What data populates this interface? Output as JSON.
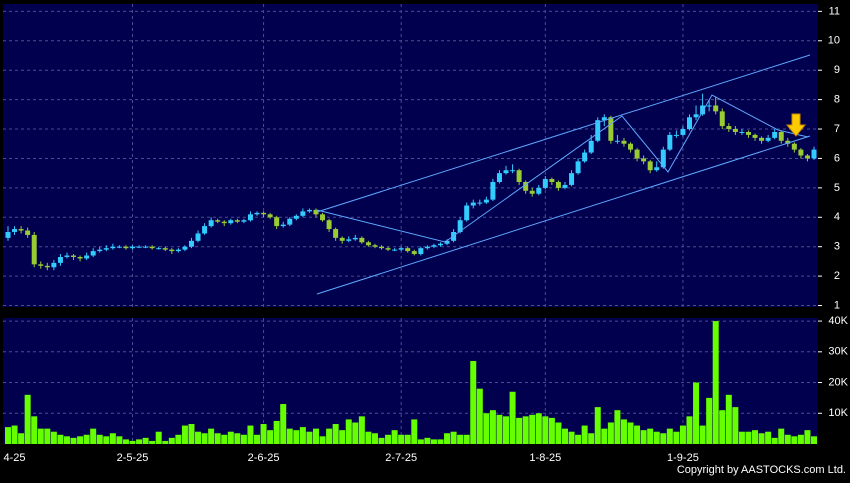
{
  "chart_data": {
    "type": "candlestick",
    "categories": [
      null,
      "4-25",
      null,
      null,
      null,
      null,
      null,
      null,
      null,
      null,
      null,
      null,
      null,
      null,
      null,
      null,
      null,
      null,
      null,
      "2-5-25",
      null,
      null,
      null,
      null,
      null,
      null,
      null,
      null,
      null,
      null,
      null,
      null,
      null,
      null,
      null,
      null,
      null,
      null,
      null,
      "2-6-25",
      null,
      null,
      null,
      null,
      null,
      null,
      null,
      null,
      null,
      null,
      null,
      null,
      null,
      null,
      null,
      null,
      null,
      null,
      null,
      null,
      "2-7-25",
      null,
      null,
      null,
      null,
      null,
      null,
      null,
      null,
      null,
      null,
      null,
      null,
      null,
      null,
      null,
      null,
      null,
      null,
      null,
      null,
      null,
      "1-8-25",
      null,
      null,
      null,
      null,
      null,
      null,
      null,
      null,
      null,
      null,
      null,
      null,
      null,
      null,
      null,
      null,
      null,
      null,
      null,
      null,
      "1-9-25",
      null,
      null,
      null,
      null,
      null,
      null,
      null,
      null,
      null,
      null,
      null,
      null,
      null,
      null,
      null,
      null,
      null,
      null,
      null,
      null
    ],
    "ohlc": [
      [
        3.3,
        3.7,
        3.2,
        3.5
      ],
      [
        3.5,
        3.7,
        3.4,
        3.6
      ],
      [
        3.6,
        3.7,
        3.45,
        3.55
      ],
      [
        3.55,
        3.65,
        3.3,
        3.4
      ],
      [
        3.4,
        3.5,
        2.3,
        2.4
      ],
      [
        2.4,
        2.5,
        2.25,
        2.35
      ],
      [
        2.35,
        2.45,
        2.2,
        2.3
      ],
      [
        2.3,
        2.55,
        2.2,
        2.45
      ],
      [
        2.45,
        2.75,
        2.35,
        2.65
      ],
      [
        2.65,
        2.8,
        2.6,
        2.7
      ],
      [
        2.7,
        2.75,
        2.55,
        2.65
      ],
      [
        2.65,
        2.7,
        2.5,
        2.6
      ],
      [
        2.6,
        2.8,
        2.55,
        2.7
      ],
      [
        2.7,
        2.95,
        2.65,
        2.85
      ],
      [
        2.85,
        3.0,
        2.8,
        2.9
      ],
      [
        2.9,
        3.05,
        2.85,
        2.95
      ],
      [
        2.95,
        3.1,
        2.9,
        3.0
      ],
      [
        3.0,
        3.05,
        2.95,
        3.0
      ],
      [
        3.0,
        3.05,
        2.9,
        2.95
      ],
      [
        2.95,
        3.05,
        2.9,
        3.0
      ],
      [
        3.0,
        3.05,
        2.95,
        3.0
      ],
      [
        3.0,
        3.05,
        2.95,
        3.0
      ],
      [
        3.0,
        3.05,
        2.9,
        2.95
      ],
      [
        2.95,
        3.0,
        2.9,
        2.95
      ],
      [
        2.95,
        3.0,
        2.85,
        2.9
      ],
      [
        2.9,
        2.95,
        2.75,
        2.85
      ],
      [
        2.85,
        2.95,
        2.8,
        2.9
      ],
      [
        2.9,
        3.05,
        2.85,
        3.0
      ],
      [
        3.0,
        3.3,
        2.95,
        3.2
      ],
      [
        3.2,
        3.55,
        3.15,
        3.45
      ],
      [
        3.45,
        3.8,
        3.4,
        3.7
      ],
      [
        3.7,
        4.0,
        3.65,
        3.9
      ],
      [
        3.9,
        3.95,
        3.8,
        3.85
      ],
      [
        3.85,
        3.9,
        3.7,
        3.8
      ],
      [
        3.8,
        3.95,
        3.75,
        3.9
      ],
      [
        3.9,
        3.95,
        3.8,
        3.85
      ],
      [
        3.85,
        3.95,
        3.8,
        3.9
      ],
      [
        3.9,
        4.2,
        3.85,
        4.1
      ],
      [
        4.1,
        4.2,
        4.05,
        4.15
      ],
      [
        4.15,
        4.2,
        4.0,
        4.1
      ],
      [
        4.1,
        4.15,
        3.95,
        4.0
      ],
      [
        4.0,
        4.05,
        3.6,
        3.7
      ],
      [
        3.7,
        3.85,
        3.65,
        3.75
      ],
      [
        3.75,
        4.0,
        3.7,
        3.95
      ],
      [
        3.95,
        4.1,
        3.9,
        4.05
      ],
      [
        4.05,
        4.3,
        4.0,
        4.2
      ],
      [
        4.2,
        4.3,
        4.15,
        4.25
      ],
      [
        4.25,
        4.3,
        4.0,
        4.1
      ],
      [
        4.1,
        4.15,
        3.85,
        3.9
      ],
      [
        3.9,
        3.95,
        3.5,
        3.6
      ],
      [
        3.6,
        3.65,
        3.2,
        3.3
      ],
      [
        3.3,
        3.35,
        3.1,
        3.2
      ],
      [
        3.2,
        3.35,
        3.15,
        3.25
      ],
      [
        3.25,
        3.4,
        3.2,
        3.3
      ],
      [
        3.3,
        3.35,
        3.1,
        3.15
      ],
      [
        3.15,
        3.2,
        3.0,
        3.05
      ],
      [
        3.05,
        3.1,
        2.95,
        3.0
      ],
      [
        3.0,
        3.05,
        2.9,
        2.95
      ],
      [
        2.95,
        3.0,
        2.85,
        2.9
      ],
      [
        2.9,
        2.95,
        2.85,
        2.9
      ],
      [
        2.9,
        3.0,
        2.85,
        2.95
      ],
      [
        2.95,
        3.0,
        2.8,
        2.85
      ],
      [
        2.85,
        2.9,
        2.7,
        2.75
      ],
      [
        2.75,
        3.0,
        2.7,
        2.95
      ],
      [
        2.95,
        3.05,
        2.9,
        3.0
      ],
      [
        3.0,
        3.1,
        2.95,
        3.05
      ],
      [
        3.05,
        3.15,
        3.0,
        3.1
      ],
      [
        3.1,
        3.25,
        3.05,
        3.2
      ],
      [
        3.2,
        3.6,
        3.15,
        3.5
      ],
      [
        3.5,
        4.0,
        3.45,
        3.9
      ],
      [
        3.9,
        4.5,
        3.85,
        4.4
      ],
      [
        4.4,
        4.6,
        4.3,
        4.5
      ],
      [
        4.5,
        4.6,
        4.4,
        4.5
      ],
      [
        4.5,
        4.7,
        4.45,
        4.6
      ],
      [
        4.6,
        5.3,
        4.55,
        5.2
      ],
      [
        5.2,
        5.6,
        5.15,
        5.5
      ],
      [
        5.5,
        5.75,
        5.45,
        5.6
      ],
      [
        5.6,
        5.8,
        5.5,
        5.6
      ],
      [
        5.6,
        5.65,
        5.1,
        5.2
      ],
      [
        5.2,
        5.25,
        4.8,
        4.9
      ],
      [
        4.9,
        5.0,
        4.7,
        4.8
      ],
      [
        4.8,
        5.1,
        4.75,
        5.0
      ],
      [
        5.0,
        5.4,
        4.95,
        5.3
      ],
      [
        5.3,
        5.35,
        5.1,
        5.2
      ],
      [
        5.2,
        5.25,
        4.9,
        5.0
      ],
      [
        5.0,
        5.2,
        4.95,
        5.1
      ],
      [
        5.1,
        5.6,
        5.05,
        5.5
      ],
      [
        5.5,
        6.0,
        5.45,
        5.9
      ],
      [
        5.9,
        6.3,
        5.85,
        6.2
      ],
      [
        6.2,
        6.8,
        6.15,
        6.6
      ],
      [
        6.6,
        7.4,
        6.55,
        7.3
      ],
      [
        7.3,
        7.5,
        7.1,
        7.4
      ],
      [
        7.4,
        7.45,
        6.5,
        6.6
      ],
      [
        6.6,
        6.8,
        6.5,
        6.6
      ],
      [
        6.6,
        6.7,
        6.4,
        6.5
      ],
      [
        6.5,
        6.55,
        6.2,
        6.3
      ],
      [
        6.3,
        6.35,
        5.9,
        6.0
      ],
      [
        6.0,
        6.1,
        5.8,
        5.9
      ],
      [
        5.9,
        5.95,
        5.5,
        5.6
      ],
      [
        5.6,
        5.9,
        5.55,
        5.7
      ],
      [
        5.7,
        6.4,
        5.65,
        6.3
      ],
      [
        6.3,
        6.9,
        6.25,
        6.8
      ],
      [
        6.8,
        6.95,
        6.7,
        6.8
      ],
      [
        6.8,
        7.1,
        6.75,
        7.0
      ],
      [
        7.0,
        7.5,
        6.95,
        7.4
      ],
      [
        7.4,
        7.8,
        7.3,
        7.5
      ],
      [
        7.5,
        8.2,
        7.45,
        7.8
      ],
      [
        7.8,
        8.0,
        7.6,
        7.8
      ],
      [
        7.8,
        8.1,
        7.5,
        7.6
      ],
      [
        7.6,
        7.7,
        7.0,
        7.1
      ],
      [
        7.1,
        7.2,
        6.9,
        7.0
      ],
      [
        7.0,
        7.1,
        6.8,
        6.9
      ],
      [
        6.9,
        7.0,
        6.8,
        6.9
      ],
      [
        6.9,
        6.95,
        6.7,
        6.8
      ],
      [
        6.8,
        6.85,
        6.6,
        6.7
      ],
      [
        6.7,
        6.75,
        6.5,
        6.6
      ],
      [
        6.6,
        6.8,
        6.55,
        6.7
      ],
      [
        6.7,
        7.0,
        6.65,
        6.9
      ],
      [
        6.9,
        6.95,
        6.5,
        6.6
      ],
      [
        6.6,
        6.7,
        6.4,
        6.5
      ],
      [
        6.5,
        6.55,
        6.2,
        6.3
      ],
      [
        6.3,
        6.35,
        6.0,
        6.1
      ],
      [
        6.1,
        6.15,
        5.9,
        6.0
      ],
      [
        6.0,
        6.4,
        5.95,
        6.3
      ]
    ],
    "volume": [
      5500,
      6000,
      3500,
      16000,
      9000,
      5000,
      5000,
      4000,
      3000,
      2500,
      2000,
      2500,
      3000,
      5000,
      3000,
      2500,
      3500,
      2500,
      1500,
      1000,
      1500,
      2000,
      1000,
      4000,
      1000,
      2000,
      3000,
      6000,
      6500,
      4000,
      3500,
      5000,
      3500,
      3000,
      4000,
      3500,
      3000,
      6000,
      3000,
      6500,
      4500,
      7500,
      13000,
      5000,
      4500,
      5500,
      4000,
      5000,
      2500,
      5000,
      6500,
      4500,
      8000,
      7000,
      9000,
      4000,
      3500,
      2000,
      3000,
      4500,
      3000,
      3000,
      8000,
      1500,
      2000,
      1500,
      1500,
      3500,
      4000,
      3000,
      3000,
      27000,
      18000,
      10000,
      11000,
      9500,
      9000,
      17000,
      8500,
      9000,
      9500,
      10000,
      9000,
      8500,
      7000,
      5000,
      4000,
      3000,
      6000,
      3500,
      12000,
      5000,
      7000,
      11000,
      8000,
      7000,
      6000,
      4500,
      5000,
      4000,
      3500,
      5000,
      4000,
      6000,
      9000,
      20000,
      6000,
      15000,
      40000,
      11000,
      16000,
      12000,
      4000,
      4000,
      4500,
      3500,
      4000,
      2000,
      5000,
      3000,
      2500,
      3000,
      4500,
      2500
    ],
    "up_color": "#33ccff",
    "down_color": "#99cc33",
    "volume_color": "#66ff00",
    "ylim": [
      0.95,
      11.25
    ],
    "yticks": [
      1,
      2,
      3,
      4,
      5,
      6,
      7,
      8,
      9,
      10,
      11
    ],
    "volume_lim": [
      0,
      41000
    ],
    "volume_ticks": [
      {
        "value": 10000,
        "label": "10K"
      },
      {
        "value": 20000,
        "label": "20K"
      },
      {
        "value": 30000,
        "label": "30K"
      },
      {
        "value": 40000,
        "label": "40K"
      }
    ],
    "grid": true,
    "source": "Copyright by AASTOCKS.com Ltd."
  }
}
